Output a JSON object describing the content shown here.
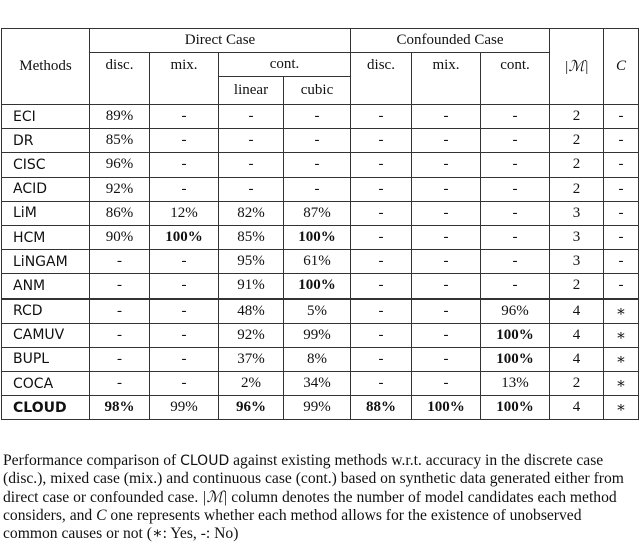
{
  "header": {
    "methods": "Methods",
    "direct_case": "Direct Case",
    "confounded_case": "Confounded Case",
    "m_col": "|ℳ|",
    "c_col": "C",
    "disc": "disc.",
    "mix": "mix.",
    "cont": "cont.",
    "linear": "linear",
    "cubic": "cubic"
  },
  "rows": [
    {
      "method": "ECI",
      "cells": [
        "89%",
        "-",
        "-",
        "-",
        "-",
        "-",
        "-",
        "2",
        "-"
      ],
      "bold": []
    },
    {
      "method": "DR",
      "cells": [
        "85%",
        "-",
        "-",
        "-",
        "-",
        "-",
        "-",
        "2",
        "-"
      ],
      "bold": []
    },
    {
      "method": "CISC",
      "cells": [
        "96%",
        "-",
        "-",
        "-",
        "-",
        "-",
        "-",
        "2",
        "-"
      ],
      "bold": []
    },
    {
      "method": "ACID",
      "cells": [
        "92%",
        "-",
        "-",
        "-",
        "-",
        "-",
        "-",
        "2",
        "-"
      ],
      "bold": []
    },
    {
      "method": "LiM",
      "cells": [
        "86%",
        "12%",
        "82%",
        "87%",
        "-",
        "-",
        "-",
        "3",
        "-"
      ],
      "bold": []
    },
    {
      "method": "HCM",
      "cells": [
        "90%",
        "100%",
        "85%",
        "100%",
        "-",
        "-",
        "-",
        "3",
        "-"
      ],
      "bold": [
        1,
        3
      ]
    },
    {
      "method": "LiNGAM",
      "cells": [
        "-",
        "-",
        "95%",
        "61%",
        "-",
        "-",
        "-",
        "3",
        "-"
      ],
      "bold": []
    },
    {
      "method": "ANM",
      "cells": [
        "-",
        "-",
        "91%",
        "100%",
        "-",
        "-",
        "-",
        "2",
        "-"
      ],
      "bold": [
        3
      ]
    },
    {
      "method": "RCD",
      "cells": [
        "-",
        "-",
        "48%",
        "5%",
        "-",
        "-",
        "96%",
        "4",
        "∗"
      ],
      "bold": [],
      "separator": true
    },
    {
      "method": "CAMUV",
      "cells": [
        "-",
        "-",
        "92%",
        "99%",
        "-",
        "-",
        "100%",
        "4",
        "∗"
      ],
      "bold": [
        6
      ]
    },
    {
      "method": "BUPL",
      "cells": [
        "-",
        "-",
        "37%",
        "8%",
        "-",
        "-",
        "100%",
        "4",
        "∗"
      ],
      "bold": [
        6
      ]
    },
    {
      "method": "COCA",
      "cells": [
        "-",
        "-",
        "2%",
        "34%",
        "-",
        "-",
        "13%",
        "2",
        "∗"
      ],
      "bold": []
    },
    {
      "method": "CLOUD",
      "cells": [
        "98%",
        "99%",
        "96%",
        "99%",
        "88%",
        "100%",
        "100%",
        "4",
        "∗"
      ],
      "bold": [
        0,
        2,
        4,
        5,
        6
      ],
      "method_bold": true
    }
  ],
  "caption": {
    "part1": "Performance comparison of ",
    "cloud": "CLOUD",
    "part2": " against existing methods w.r.t. accuracy in the discrete case (disc.), mixed case (mix.) and continuous case (cont.) based on synthetic data generated either from direct case or confounded case. ",
    "m": "|ℳ|",
    "part3": " column denotes the number of model candidates each method considers, and ",
    "c": "C",
    "part4": " one represents whether each method allows for the existence of unobserved common causes or not (∗: Yes, -: No)"
  }
}
